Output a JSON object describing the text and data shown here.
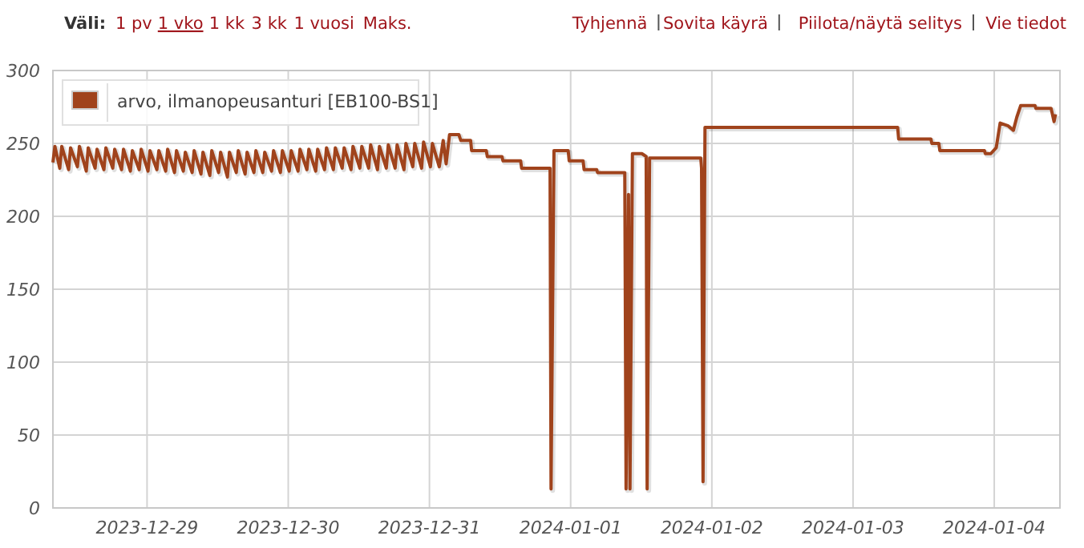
{
  "chart_data": {
    "type": "line",
    "annotations": [
      "Väli:",
      "1 pv",
      "1 vko",
      "1 kk",
      "3 kk",
      "1 vuosi",
      "Maks.",
      "Tyhjennä",
      "Sovita käyrä",
      "Piilota/näytä selitys",
      "Vie tiedot"
    ],
    "x": [
      "2023-12-28T08:00",
      "2023-12-28T08:20",
      "2023-12-28T09:10",
      "2023-12-28T09:30",
      "2023-12-28T10:40",
      "2023-12-28T11:00",
      "2023-12-28T12:10",
      "2023-12-28T12:30",
      "2023-12-28T13:40",
      "2023-12-28T14:00",
      "2023-12-28T15:10",
      "2023-12-28T15:30",
      "2023-12-28T16:40",
      "2023-12-28T17:00",
      "2023-12-28T18:10",
      "2023-12-28T18:30",
      "2023-12-28T19:40",
      "2023-12-28T20:00",
      "2023-12-28T21:10",
      "2023-12-28T21:30",
      "2023-12-28T22:40",
      "2023-12-28T23:00",
      "2023-12-29T00:10",
      "2023-12-29T00:30",
      "2023-12-29T01:40",
      "2023-12-29T02:00",
      "2023-12-29T03:10",
      "2023-12-29T03:30",
      "2023-12-29T04:40",
      "2023-12-29T05:00",
      "2023-12-29T06:10",
      "2023-12-29T06:30",
      "2023-12-29T07:40",
      "2023-12-29T08:00",
      "2023-12-29T09:10",
      "2023-12-29T09:30",
      "2023-12-29T10:40",
      "2023-12-29T11:00",
      "2023-12-29T12:10",
      "2023-12-29T12:30",
      "2023-12-29T13:40",
      "2023-12-29T14:00",
      "2023-12-29T15:10",
      "2023-12-29T15:30",
      "2023-12-29T16:40",
      "2023-12-29T17:00",
      "2023-12-29T18:10",
      "2023-12-29T18:30",
      "2023-12-29T19:40",
      "2023-12-29T20:00",
      "2023-12-29T21:10",
      "2023-12-29T21:30",
      "2023-12-29T22:40",
      "2023-12-29T23:00",
      "2023-12-30T00:10",
      "2023-12-30T00:30",
      "2023-12-30T01:40",
      "2023-12-30T02:00",
      "2023-12-30T03:10",
      "2023-12-30T03:30",
      "2023-12-30T04:40",
      "2023-12-30T05:00",
      "2023-12-30T06:10",
      "2023-12-30T06:30",
      "2023-12-30T07:40",
      "2023-12-30T08:00",
      "2023-12-30T09:10",
      "2023-12-30T09:30",
      "2023-12-30T10:40",
      "2023-12-30T11:00",
      "2023-12-30T12:10",
      "2023-12-30T12:30",
      "2023-12-30T13:40",
      "2023-12-30T14:00",
      "2023-12-30T15:10",
      "2023-12-30T15:30",
      "2023-12-30T16:40",
      "2023-12-30T17:00",
      "2023-12-30T18:10",
      "2023-12-30T18:30",
      "2023-12-30T19:40",
      "2023-12-30T20:00",
      "2023-12-30T21:10",
      "2023-12-30T21:30",
      "2023-12-30T22:40",
      "2023-12-30T23:00",
      "2023-12-31T00:10",
      "2023-12-31T00:30",
      "2023-12-31T01:40",
      "2023-12-31T02:20",
      "2023-12-31T02:50",
      "2023-12-31T03:25",
      "2023-12-31T05:00",
      "2023-12-31T05:20",
      "2023-12-31T07:00",
      "2023-12-31T07:10",
      "2023-12-31T09:40",
      "2023-12-31T09:50",
      "2023-12-31T12:20",
      "2023-12-31T12:30",
      "2023-12-31T15:30",
      "2023-12-31T15:40",
      "2023-12-31T20:30",
      "2023-12-31T20:40",
      "2023-12-31T21:10",
      "2023-12-31T23:35",
      "2023-12-31T23:45",
      "2024-01-01T02:07",
      "2024-01-01T02:17",
      "2024-01-01T04:25",
      "2024-01-01T04:35",
      "2024-01-01T09:12",
      "2024-01-01T09:25",
      "2024-01-01T09:50",
      "2024-01-01T10:05",
      "2024-01-01T10:30",
      "2024-01-01T12:06",
      "2024-01-01T12:50",
      "2024-01-01T13:00",
      "2024-01-01T13:25",
      "2024-01-01T22:07",
      "2024-01-01T22:15",
      "2024-01-01T22:30",
      "2024-01-01T22:50",
      "2024-01-01T23:20",
      "2024-01-03T07:35",
      "2024-01-03T07:45",
      "2024-01-03T13:14",
      "2024-01-03T13:24",
      "2024-01-03T14:35",
      "2024-01-03T14:45",
      "2024-01-03T22:20",
      "2024-01-03T22:30",
      "2024-01-03T23:25",
      "2024-01-04T00:20",
      "2024-01-04T01:00",
      "2024-01-04T02:22",
      "2024-01-04T03:15",
      "2024-01-04T03:50",
      "2024-01-04T04:30",
      "2024-01-04T06:55",
      "2024-01-04T07:05",
      "2024-01-04T09:40",
      "2024-01-04T10:10",
      "2024-01-04T10:25"
    ],
    "series": [
      {
        "name": "arvo, ilmanopeusanturi [EB100-BS1]",
        "color": "#a0431c",
        "values": [
          237,
          248,
          233,
          248,
          232,
          247,
          234,
          248,
          231,
          247,
          233,
          246,
          232,
          247,
          233,
          246,
          232,
          246,
          231,
          245,
          232,
          246,
          231,
          245,
          232,
          245,
          231,
          246,
          230,
          245,
          231,
          244,
          230,
          245,
          229,
          244,
          228,
          245,
          230,
          244,
          227,
          244,
          230,
          245,
          229,
          244,
          230,
          245,
          230,
          244,
          231,
          245,
          230,
          245,
          231,
          245,
          231,
          246,
          232,
          246,
          231,
          246,
          232,
          247,
          232,
          247,
          233,
          247,
          232,
          248,
          233,
          248,
          233,
          249,
          232,
          248,
          233,
          249,
          233,
          249,
          232,
          250,
          234,
          250,
          233,
          251,
          234,
          250,
          234,
          252,
          236,
          256,
          256,
          252,
          252,
          245,
          245,
          241,
          241,
          238,
          238,
          233,
          233,
          13,
          245,
          245,
          238,
          238,
          232,
          232,
          230,
          230,
          13,
          215,
          13,
          243,
          243,
          241,
          13,
          240,
          240,
          233,
          18,
          261,
          261,
          261,
          253,
          253,
          250,
          250,
          245,
          245,
          243,
          243,
          247,
          264,
          262,
          259,
          268,
          276,
          276,
          274,
          274,
          265,
          270
        ]
      }
    ],
    "xlim": [
      "2023-12-28T08:00",
      "2024-01-04T11:10"
    ],
    "xticks": [
      "2023-12-29",
      "2023-12-30",
      "2023-12-31",
      "2024-01-01",
      "2024-01-02",
      "2024-01-03",
      "2024-01-04"
    ],
    "ylim": [
      0,
      300
    ],
    "yticks": [
      0,
      50,
      100,
      150,
      200,
      250,
      300
    ],
    "grid": true,
    "legend": "top left",
    "marker": "none",
    "line_style": "solid"
  }
}
